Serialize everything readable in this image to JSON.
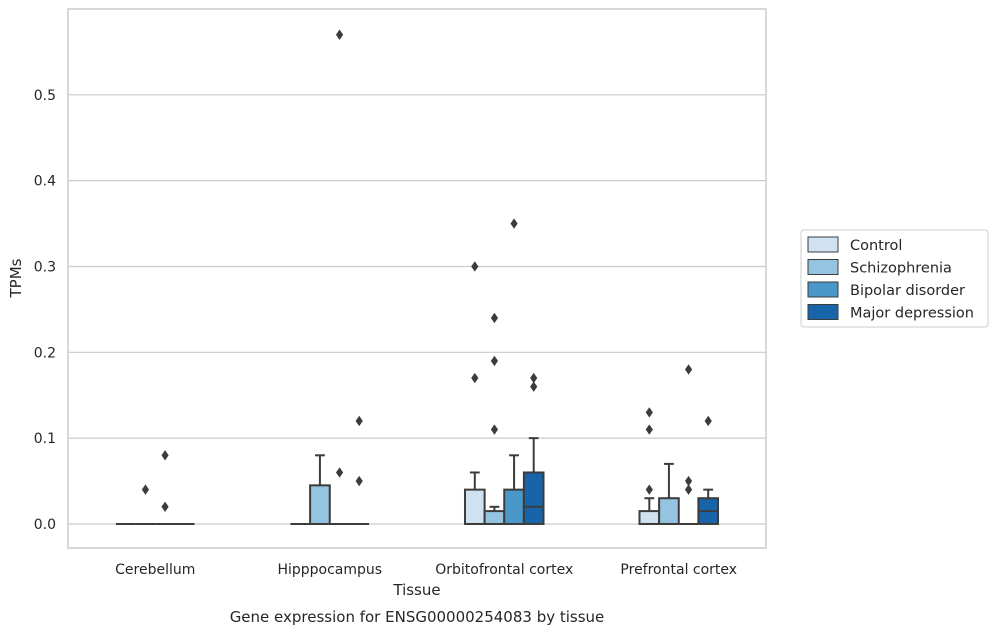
{
  "chart_data": {
    "type": "box",
    "xlabel": "Tissue",
    "ylabel": "TPMs",
    "caption": "Gene expression for ENSG00000254083 by tissue",
    "ylim": [
      -0.028,
      0.6
    ],
    "yticks": [
      "0.0",
      "0.1",
      "0.2",
      "0.3",
      "0.4",
      "0.5"
    ],
    "grid": "horizontal",
    "legend_position": "right",
    "categories": [
      "Cerebellum",
      "Hipppocampus",
      "Orbitofrontal cortex",
      "Prefrontal cortex"
    ],
    "series": [
      {
        "name": "Control",
        "color": "#d0e1f2",
        "boxes": [
          {
            "q1": 0,
            "median": 0,
            "q3": 0,
            "whisker_low": 0,
            "whisker_high": 0,
            "outliers": []
          },
          {
            "q1": 0,
            "median": 0,
            "q3": 0,
            "whisker_low": 0,
            "whisker_high": 0,
            "outliers": []
          },
          {
            "q1": 0,
            "median": 0,
            "q3": 0.04,
            "whisker_low": 0,
            "whisker_high": 0.06,
            "outliers": [
              0.3,
              0.17
            ]
          },
          {
            "q1": 0,
            "median": 0,
            "q3": 0.015,
            "whisker_low": 0,
            "whisker_high": 0.03,
            "outliers": [
              0.13,
              0.11,
              0.04
            ]
          }
        ]
      },
      {
        "name": "Schizophrenia",
        "color": "#94c4df",
        "boxes": [
          {
            "q1": 0,
            "median": 0,
            "q3": 0,
            "whisker_low": 0,
            "whisker_high": 0,
            "outliers": [
              0.04
            ]
          },
          {
            "q1": 0,
            "median": 0,
            "q3": 0.045,
            "whisker_low": 0,
            "whisker_high": 0.08,
            "outliers": []
          },
          {
            "q1": 0,
            "median": 0,
            "q3": 0.015,
            "whisker_low": 0,
            "whisker_high": 0.02,
            "outliers": [
              0.24,
              0.19,
              0.11
            ]
          },
          {
            "q1": 0,
            "median": 0,
            "q3": 0.03,
            "whisker_low": 0,
            "whisker_high": 0.07,
            "outliers": []
          }
        ]
      },
      {
        "name": "Bipolar disorder",
        "color": "#4a98c9",
        "boxes": [
          {
            "q1": 0,
            "median": 0,
            "q3": 0,
            "whisker_low": 0,
            "whisker_high": 0,
            "outliers": [
              0.08,
              0.02
            ]
          },
          {
            "q1": 0,
            "median": 0,
            "q3": 0,
            "whisker_low": 0,
            "whisker_high": 0,
            "outliers": [
              0.57,
              0.06
            ]
          },
          {
            "q1": 0,
            "median": 0,
            "q3": 0.04,
            "whisker_low": 0,
            "whisker_high": 0.08,
            "outliers": [
              0.35
            ]
          },
          {
            "q1": 0,
            "median": 0,
            "q3": 0,
            "whisker_low": 0,
            "whisker_high": 0,
            "outliers": [
              0.18,
              0.05,
              0.04
            ]
          }
        ]
      },
      {
        "name": "Major depression",
        "color": "#1764ab",
        "boxes": [
          {
            "q1": 0,
            "median": 0,
            "q3": 0,
            "whisker_low": 0,
            "whisker_high": 0,
            "outliers": []
          },
          {
            "q1": 0,
            "median": 0,
            "q3": 0,
            "whisker_low": 0,
            "whisker_high": 0,
            "outliers": [
              0.12,
              0.05
            ]
          },
          {
            "q1": 0,
            "median": 0.02,
            "q3": 0.06,
            "whisker_low": 0,
            "whisker_high": 0.1,
            "outliers": [
              0.17,
              0.16
            ]
          },
          {
            "q1": 0,
            "median": 0.015,
            "q3": 0.03,
            "whisker_low": 0,
            "whisker_high": 0.04,
            "outliers": [
              0.12
            ]
          }
        ]
      }
    ]
  }
}
